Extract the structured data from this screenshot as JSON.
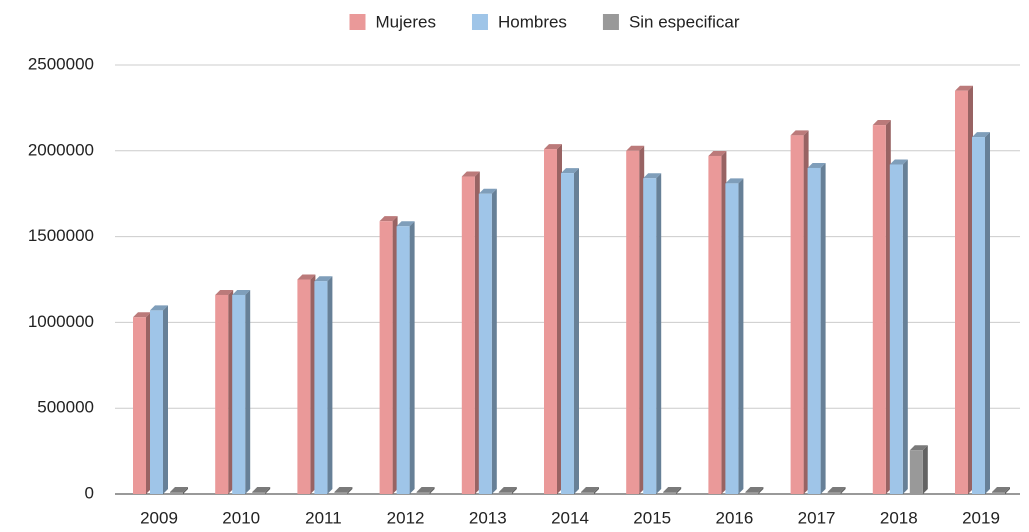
{
  "chart_data": {
    "type": "bar3d",
    "categories": [
      "2009",
      "2010",
      "2011",
      "2012",
      "2013",
      "2014",
      "2015",
      "2016",
      "2017",
      "2018",
      "2019"
    ],
    "series": [
      {
        "name": "Mujeres",
        "color": "#ea9999",
        "values": [
          1030000,
          1160000,
          1250000,
          1590000,
          1850000,
          2010000,
          2000000,
          1970000,
          2090000,
          2150000,
          2350000
        ]
      },
      {
        "name": "Hombres",
        "color": "#9fc5e8",
        "values": [
          1070000,
          1160000,
          1240000,
          1560000,
          1750000,
          1870000,
          1840000,
          1810000,
          1900000,
          1920000,
          2080000
        ]
      },
      {
        "name": "Sin especificar",
        "color": "#999999",
        "values": [
          0,
          0,
          0,
          0,
          0,
          0,
          0,
          0,
          0,
          255000,
          0
        ]
      }
    ],
    "ylim": [
      0,
      2500000
    ],
    "yticks": [
      0,
      500000,
      1000000,
      1500000,
      2000000,
      2500000
    ],
    "grid": true,
    "legend": "top"
  }
}
